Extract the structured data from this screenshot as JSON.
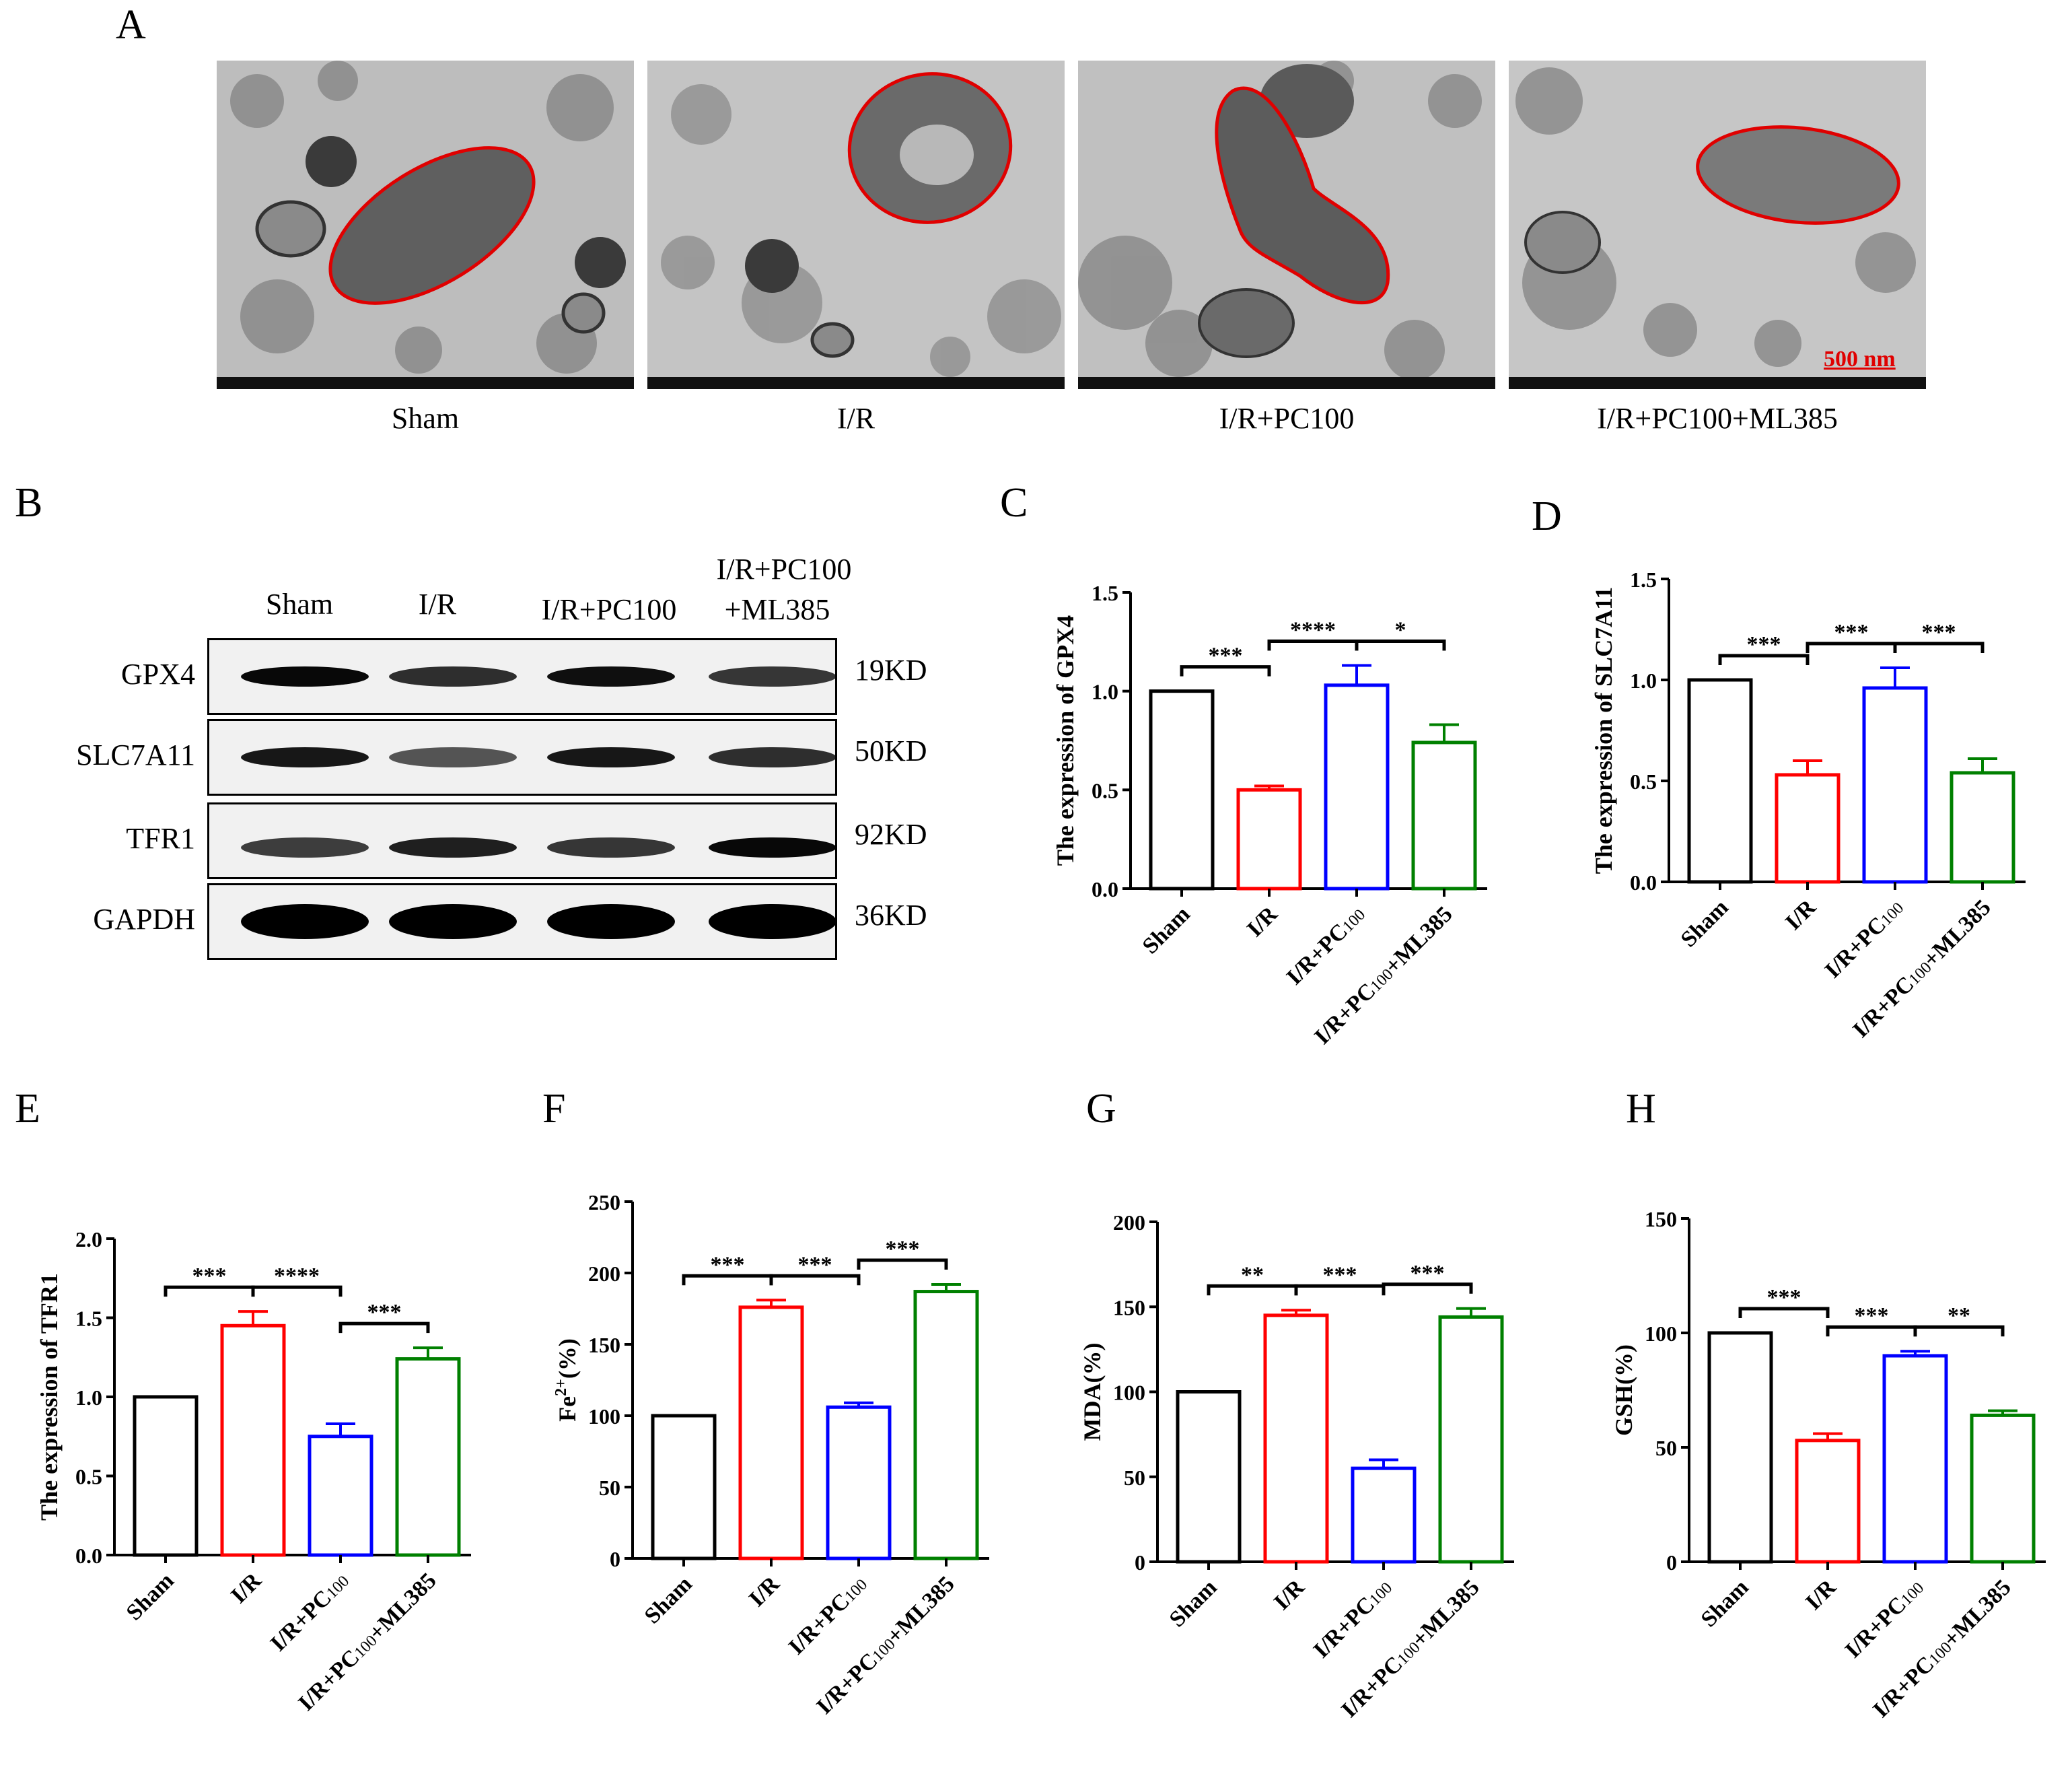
{
  "panels": {
    "A": "A",
    "B": "B",
    "C": "C",
    "D": "D",
    "E": "E",
    "F": "F",
    "G": "G",
    "H": "H"
  },
  "em": {
    "captions": [
      "Sham",
      "I/R",
      "I/R+PC100",
      "I/R+PC100+ML385"
    ],
    "scale_bar": "500 nm"
  },
  "western_blot": {
    "lane_labels": [
      "Sham",
      "I/R",
      "I/R+PC100",
      "I/R+PC100",
      "+ML385"
    ],
    "rows": [
      {
        "protein": "GPX4",
        "size": "19KD"
      },
      {
        "protein": "SLC7A11",
        "size": "50KD"
      },
      {
        "protein": "TFR1",
        "size": "92KD"
      },
      {
        "protein": "GAPDH",
        "size": "36KD"
      }
    ]
  },
  "colors": {
    "Sham": "#000000",
    "I/R": "#ff0000",
    "I/R+PC100": "#0000ff",
    "I/R+PC100+ML385": "#008000"
  },
  "chart_data": [
    {
      "panel": "C",
      "type": "bar",
      "categories": [
        "Sham",
        "I/R",
        "I/R+PC100",
        "I/R+PC100+ML385"
      ],
      "values": [
        1.0,
        0.5,
        1.03,
        0.74
      ],
      "errors": [
        0,
        0.02,
        0.1,
        0.09
      ],
      "ylabel": "The expression of GPX4",
      "ylim": [
        0,
        1.5
      ],
      "yticks": [
        "0.0",
        "0.5",
        "1.0",
        "1.5"
      ],
      "significance": [
        {
          "from": 0,
          "to": 1,
          "label": "***"
        },
        {
          "from": 1,
          "to": 2,
          "label": "****"
        },
        {
          "from": 2,
          "to": 3,
          "label": "*"
        }
      ]
    },
    {
      "panel": "D",
      "type": "bar",
      "categories": [
        "Sham",
        "I/R",
        "I/R+PC100",
        "I/R+PC100+ML385"
      ],
      "values": [
        1.0,
        0.53,
        0.96,
        0.54
      ],
      "errors": [
        0,
        0.07,
        0.1,
        0.07
      ],
      "ylabel": "The expression of SLC7A11",
      "ylim": [
        0,
        1.5
      ],
      "yticks": [
        "0.0",
        "0.5",
        "1.0",
        "1.5"
      ],
      "significance": [
        {
          "from": 0,
          "to": 1,
          "label": "***"
        },
        {
          "from": 1,
          "to": 2,
          "label": "***"
        },
        {
          "from": 2,
          "to": 3,
          "label": "***"
        }
      ]
    },
    {
      "panel": "E",
      "type": "bar",
      "categories": [
        "Sham",
        "I/R",
        "I/R+PC100",
        "I/R+PC100+ML385"
      ],
      "values": [
        1.0,
        1.45,
        0.75,
        1.24
      ],
      "errors": [
        0,
        0.09,
        0.08,
        0.07
      ],
      "ylabel": "The expression of TFR1",
      "ylim": [
        0,
        2.0
      ],
      "yticks": [
        "0.0",
        "0.5",
        "1.0",
        "1.5",
        "2.0"
      ],
      "significance": [
        {
          "from": 0,
          "to": 1,
          "label": "***"
        },
        {
          "from": 1,
          "to": 2,
          "label": "****"
        },
        {
          "from": 2,
          "to": 3,
          "label": "***"
        }
      ]
    },
    {
      "panel": "F",
      "type": "bar",
      "categories": [
        "Sham",
        "I/R",
        "I/R+PC100",
        "I/R+PC100+ML385"
      ],
      "values": [
        100,
        176,
        106,
        187
      ],
      "errors": [
        0,
        5,
        3,
        5
      ],
      "ylabel": "Fe2+(%)",
      "ylim": [
        0,
        250
      ],
      "yticks": [
        "0",
        "50",
        "100",
        "150",
        "200",
        "250"
      ],
      "significance": [
        {
          "from": 0,
          "to": 1,
          "label": "***"
        },
        {
          "from": 1,
          "to": 2,
          "label": "***"
        },
        {
          "from": 2,
          "to": 3,
          "label": "***"
        }
      ]
    },
    {
      "panel": "G",
      "type": "bar",
      "categories": [
        "Sham",
        "I/R",
        "I/R+PC100",
        "I/R+PC100+ML385"
      ],
      "values": [
        100,
        145,
        55,
        144
      ],
      "errors": [
        0,
        3,
        5,
        5
      ],
      "ylabel": "MDA(%)",
      "ylim": [
        0,
        200
      ],
      "yticks": [
        "0",
        "50",
        "100",
        "150",
        "200"
      ],
      "significance": [
        {
          "from": 0,
          "to": 1,
          "label": "**"
        },
        {
          "from": 1,
          "to": 2,
          "label": "***"
        },
        {
          "from": 2,
          "to": 3,
          "label": "***"
        }
      ]
    },
    {
      "panel": "H",
      "type": "bar",
      "categories": [
        "Sham",
        "I/R",
        "I/R+PC100",
        "I/R+PC100+ML385"
      ],
      "values": [
        100,
        53,
        90,
        64
      ],
      "errors": [
        0,
        3,
        2,
        2
      ],
      "ylabel": "GSH(%)",
      "ylim": [
        0,
        150
      ],
      "yticks": [
        "0",
        "50",
        "100",
        "150"
      ],
      "significance": [
        {
          "from": 0,
          "to": 1,
          "label": "***"
        },
        {
          "from": 1,
          "to": 2,
          "label": "***"
        },
        {
          "from": 2,
          "to": 3,
          "label": "**"
        }
      ]
    }
  ]
}
